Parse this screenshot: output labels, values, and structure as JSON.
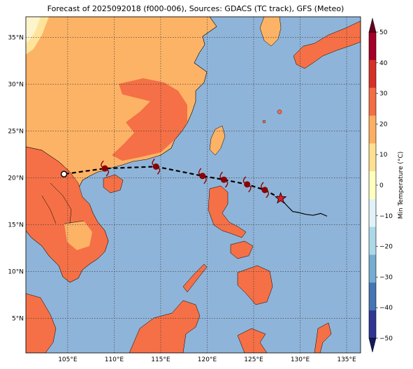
{
  "title": "Forecast of 2025092018 (f000-006), Sources: GDACS (TC track), GFS (Meteo)",
  "map": {
    "lon_range": [
      100.5,
      136.5
    ],
    "lat_range": [
      1.3,
      37.2
    ],
    "lon_ticks": [
      {
        "value": 105,
        "label": "105°E"
      },
      {
        "value": 110,
        "label": "110°E"
      },
      {
        "value": 115,
        "label": "115°E"
      },
      {
        "value": 120,
        "label": "120°E"
      },
      {
        "value": 125,
        "label": "125°E"
      },
      {
        "value": 130,
        "label": "130°E"
      },
      {
        "value": 135,
        "label": "135°E"
      }
    ],
    "lat_ticks": [
      {
        "value": 5,
        "label": "5°N"
      },
      {
        "value": 10,
        "label": "10°N"
      },
      {
        "value": 15,
        "label": "15°N"
      },
      {
        "value": 20,
        "label": "20°N"
      },
      {
        "value": 25,
        "label": "25°N"
      },
      {
        "value": 30,
        "label": "30°N"
      },
      {
        "value": 35,
        "label": "35°N"
      }
    ],
    "grid": true,
    "colors": {
      "sea": "#8fb4d9",
      "land_warm": "#fdb366",
      "land_hot": "#f57046",
      "land_mild": "#fee49a",
      "land_cool": "#fdf4cc"
    }
  },
  "colorbar": {
    "label": "Min Temperature (°C)",
    "range": [
      -50,
      50
    ],
    "ticks": [
      "50",
      "40",
      "30",
      "20",
      "10",
      "0",
      "−10",
      "−20",
      "−30",
      "−40",
      "−50"
    ],
    "colors": [
      "#a50026",
      "#d73027",
      "#f46d43",
      "#fdae61",
      "#fee090",
      "#ffffbf",
      "#e0f3f8",
      "#abd9e9",
      "#74add1",
      "#4575b4",
      "#313695"
    ]
  },
  "track": {
    "forecast_points": [
      {
        "lon": 104.6,
        "lat": 20.4
      },
      {
        "lon": 109.0,
        "lat": 21.0
      },
      {
        "lon": 114.5,
        "lat": 21.2
      },
      {
        "lon": 119.5,
        "lat": 20.2
      },
      {
        "lon": 121.8,
        "lat": 19.8
      },
      {
        "lon": 124.3,
        "lat": 19.3
      },
      {
        "lon": 126.2,
        "lat": 18.7
      }
    ],
    "current_position": {
      "lon": 127.9,
      "lat": 17.8
    },
    "past_track": [
      {
        "lon": 127.9,
        "lat": 17.8
      },
      {
        "lon": 128.6,
        "lat": 17.0
      },
      {
        "lon": 129.2,
        "lat": 16.4
      },
      {
        "lon": 129.8,
        "lat": 16.3
      },
      {
        "lon": 130.6,
        "lat": 16.1
      },
      {
        "lon": 131.4,
        "lat": 16.0
      },
      {
        "lon": 132.2,
        "lat": 16.2
      },
      {
        "lon": 132.9,
        "lat": 15.9
      }
    ],
    "marker_color": "#8b0000",
    "star_color": "#e3171f"
  }
}
